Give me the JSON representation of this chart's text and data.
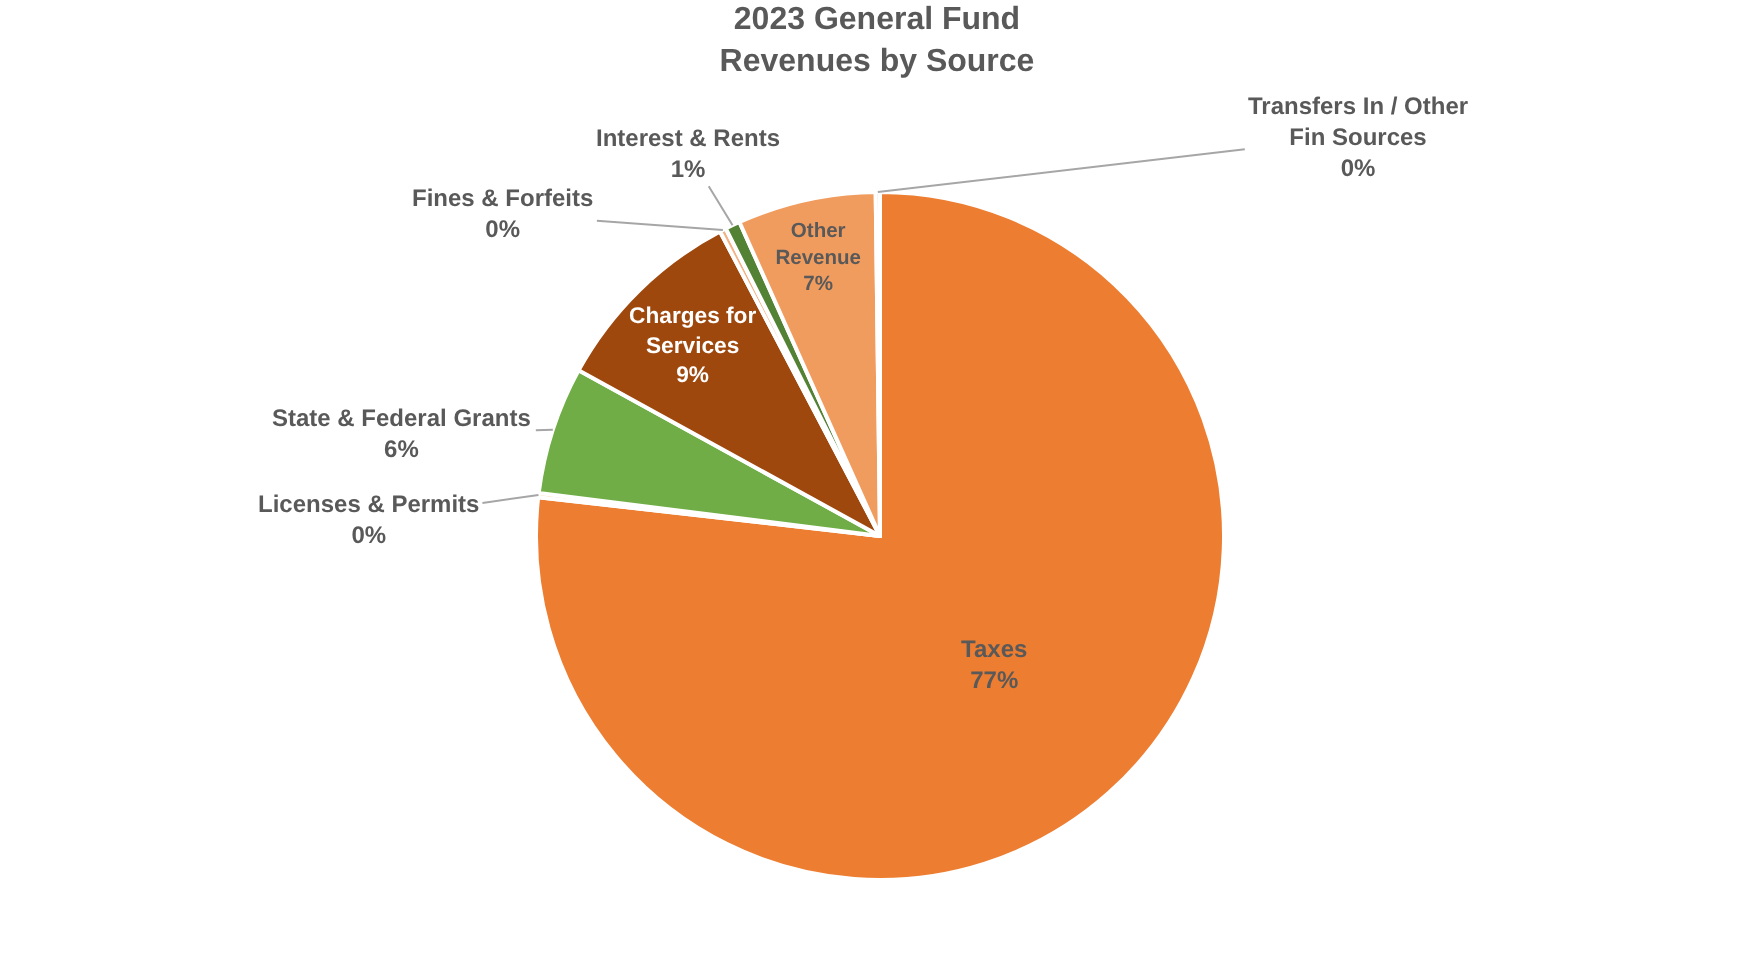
{
  "chart_data": {
    "type": "pie",
    "title": "2023 General Fund\nRevenues by Source",
    "categories": [
      "Taxes",
      "Licenses & Permits",
      "State & Federal Grants",
      "Charges for Services",
      "Fines & Forfeits",
      "Interest & Rents",
      "Other Revenue",
      "Transfers In / Other Fin Sources"
    ],
    "values": [
      76.8,
      0.2,
      6.0,
      9.3,
      0.3,
      0.7,
      6.5,
      0.2
    ],
    "value_labels": [
      "77%",
      "0%",
      "6%",
      "9%",
      "0%",
      "1%",
      "7%",
      "0%"
    ],
    "colors": [
      "#ed7d31",
      "#f8cbad",
      "#70ad47",
      "#9e480e",
      "#f4b183",
      "#548235",
      "#f19c5f",
      "#d9d9d9"
    ],
    "legend": false
  }
}
